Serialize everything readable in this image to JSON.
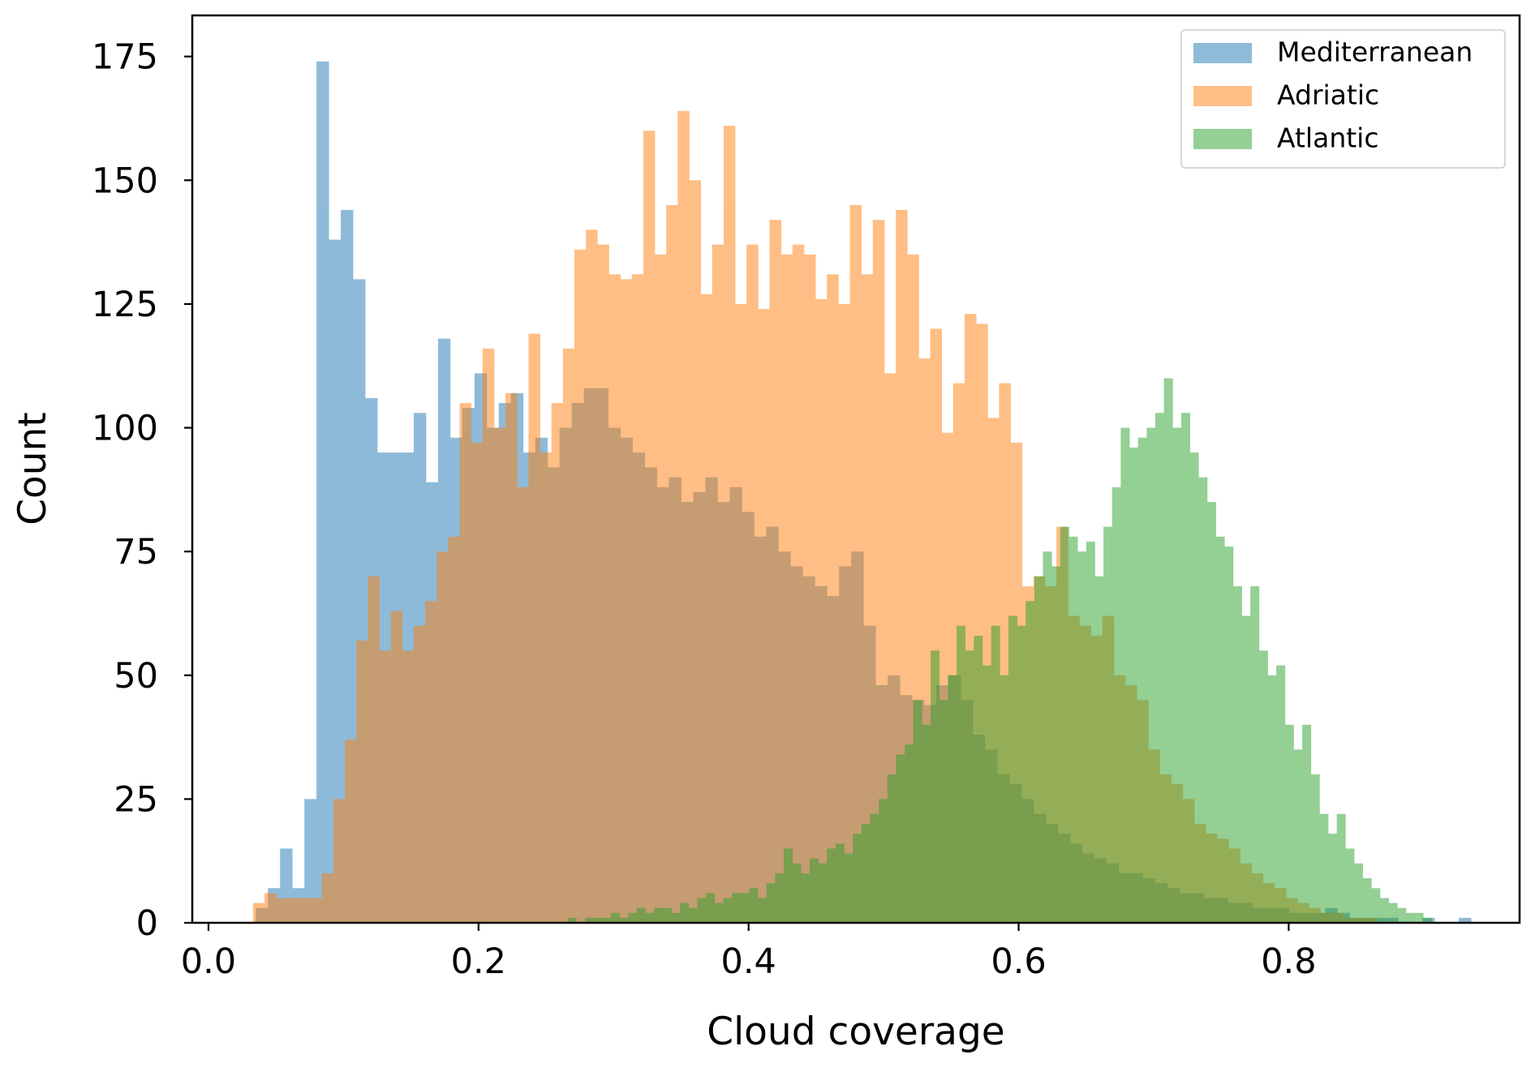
{
  "chart_data": {
    "type": "histogram",
    "xlabel": "Cloud coverage",
    "ylabel": "Count",
    "xlim": [
      -0.012,
      0.971
    ],
    "ylim": [
      0,
      183.3
    ],
    "xticks": [
      {
        "value": 0,
        "label": "0.0"
      },
      0.2,
      0.4,
      0.6,
      0.8
    ],
    "yticks": [
      0,
      25,
      50,
      75,
      100,
      125,
      150,
      175
    ],
    "legend": "upper right",
    "alpha": 0.5,
    "series": [
      {
        "name": "Mediterranean",
        "color": "#1f77b4",
        "bins": [
          0.035,
          0.044,
          0.053,
          0.062,
          0.071,
          0.08,
          0.089,
          0.098,
          0.107,
          0.116,
          0.125,
          0.134,
          0.143,
          0.152,
          0.161,
          0.17,
          0.179,
          0.188,
          0.197,
          0.206,
          0.215,
          0.224,
          0.233,
          0.242,
          0.251,
          0.26,
          0.269,
          0.278,
          0.287,
          0.296,
          0.305,
          0.314,
          0.323,
          0.332,
          0.341,
          0.35,
          0.359,
          0.368,
          0.377,
          0.386,
          0.395,
          0.404,
          0.413,
          0.422,
          0.431,
          0.44,
          0.449,
          0.458,
          0.467,
          0.476,
          0.485,
          0.494,
          0.503,
          0.512,
          0.521,
          0.53,
          0.539,
          0.548,
          0.557,
          0.566,
          0.575,
          0.584,
          0.593,
          0.602,
          0.611,
          0.62,
          0.629,
          0.638,
          0.647,
          0.656,
          0.665,
          0.674,
          0.683,
          0.692,
          0.701,
          0.71,
          0.719,
          0.728,
          0.737,
          0.746,
          0.755,
          0.764,
          0.773,
          0.782,
          0.791,
          0.8,
          0.809,
          0.818,
          0.827,
          0.836,
          0.845,
          0.854,
          0.863,
          0.872,
          0.881,
          0.89,
          0.899,
          0.908,
          0.917,
          0.926,
          0.935
        ],
        "values": [
          3,
          7,
          15,
          7,
          25,
          174,
          138,
          144,
          130,
          106,
          95,
          95,
          95,
          103,
          89,
          118,
          98,
          104,
          111,
          100,
          105,
          107,
          95,
          98,
          92,
          100,
          105,
          108,
          108,
          100,
          98,
          95,
          92,
          88,
          90,
          85,
          87,
          90,
          85,
          88,
          83,
          78,
          80,
          75,
          72,
          70,
          68,
          66,
          72,
          75,
          60,
          48,
          50,
          46,
          45,
          44,
          48,
          50,
          45,
          38,
          35,
          30,
          28,
          25,
          22,
          20,
          18,
          16,
          14,
          13,
          12,
          10,
          10,
          9,
          8,
          7,
          6,
          6,
          5,
          5,
          4,
          4,
          3,
          3,
          3,
          2,
          2,
          2,
          3,
          2,
          1,
          1,
          1,
          1,
          0,
          0,
          1,
          0,
          0,
          1
        ]
      },
      {
        "name": "Adriatic",
        "color": "#ff7f0e",
        "bins": [
          0.033,
          0.0415,
          0.05,
          0.0585,
          0.067,
          0.0755,
          0.084,
          0.0925,
          0.101,
          0.1095,
          0.118,
          0.1265,
          0.135,
          0.1435,
          0.152,
          0.1605,
          0.169,
          0.1775,
          0.186,
          0.1945,
          0.203,
          0.2115,
          0.22,
          0.2285,
          0.237,
          0.2455,
          0.254,
          0.2625,
          0.271,
          0.2795,
          0.288,
          0.2965,
          0.305,
          0.3135,
          0.322,
          0.3305,
          0.339,
          0.3475,
          0.356,
          0.3645,
          0.373,
          0.3815,
          0.39,
          0.3985,
          0.407,
          0.4155,
          0.424,
          0.4325,
          0.441,
          0.4495,
          0.458,
          0.4665,
          0.475,
          0.4835,
          0.492,
          0.5005,
          0.509,
          0.5175,
          0.526,
          0.5345,
          0.543,
          0.5515,
          0.56,
          0.5685,
          0.577,
          0.5855,
          0.594,
          0.6025,
          0.611,
          0.6195,
          0.628,
          0.6365,
          0.645,
          0.6535,
          0.662,
          0.6705,
          0.679,
          0.6875,
          0.696,
          0.7045,
          0.713,
          0.7215,
          0.73,
          0.7385,
          0.747,
          0.7555,
          0.764,
          0.7725,
          0.781,
          0.7895,
          0.798,
          0.8065,
          0.815,
          0.8235,
          0.832,
          0.8405,
          0.849,
          0.8575,
          0.866
        ],
        "values": [
          4,
          6,
          5,
          5,
          5,
          5,
          10,
          25,
          37,
          57,
          70,
          55,
          63,
          55,
          60,
          65,
          75,
          78,
          105,
          97,
          116,
          100,
          107,
          88,
          119,
          95,
          105,
          116,
          136,
          140,
          137,
          131,
          130,
          131,
          160,
          135,
          145,
          164,
          150,
          127,
          137,
          161,
          125,
          137,
          124,
          142,
          135,
          137,
          135,
          126,
          131,
          125,
          145,
          131,
          142,
          111,
          144,
          135,
          114,
          120,
          99,
          109,
          123,
          121,
          102,
          109,
          97,
          68,
          70,
          68,
          80,
          62,
          60,
          58,
          62,
          50,
          48,
          45,
          35,
          30,
          28,
          25,
          20,
          18,
          17,
          15,
          12,
          10,
          8,
          7,
          5,
          4,
          3,
          2,
          2,
          1,
          1,
          1
        ]
      },
      {
        "name": "Atlantic",
        "color": "#2ca02c",
        "bins": [
          0.266,
          0.2724,
          0.2788,
          0.2852,
          0.2916,
          0.298,
          0.3044,
          0.3108,
          0.3172,
          0.3236,
          0.33,
          0.3364,
          0.3428,
          0.3492,
          0.3556,
          0.362,
          0.3684,
          0.3748,
          0.3812,
          0.3876,
          0.394,
          0.4004,
          0.4068,
          0.4132,
          0.4196,
          0.426,
          0.4324,
          0.4388,
          0.4452,
          0.4516,
          0.458,
          0.4644,
          0.4708,
          0.4772,
          0.4836,
          0.49,
          0.4964,
          0.5028,
          0.5092,
          0.5156,
          0.522,
          0.5284,
          0.5348,
          0.5412,
          0.5476,
          0.554,
          0.5604,
          0.5668,
          0.5732,
          0.5796,
          0.586,
          0.5924,
          0.5988,
          0.6052,
          0.6116,
          0.618,
          0.6244,
          0.6308,
          0.6372,
          0.6436,
          0.65,
          0.6564,
          0.6628,
          0.6692,
          0.6756,
          0.682,
          0.6884,
          0.6948,
          0.7012,
          0.7076,
          0.714,
          0.7204,
          0.7268,
          0.7332,
          0.7396,
          0.746,
          0.7524,
          0.7588,
          0.7652,
          0.7716,
          0.778,
          0.7844,
          0.7908,
          0.7972,
          0.8036,
          0.81,
          0.8164,
          0.8228,
          0.8292,
          0.8356,
          0.842,
          0.8484,
          0.8548,
          0.8612,
          0.8676,
          0.874,
          0.8804,
          0.8868,
          0.8932,
          0.8996,
          0.906
        ],
        "values": [
          1,
          0,
          1,
          1,
          1,
          2,
          1,
          2,
          3,
          2,
          3,
          3,
          2,
          4,
          3,
          5,
          6,
          4,
          5,
          6,
          6,
          7,
          5,
          8,
          10,
          15,
          12,
          10,
          13,
          12,
          15,
          16,
          14,
          18,
          20,
          22,
          25,
          30,
          34,
          36,
          45,
          40,
          55,
          45,
          50,
          60,
          55,
          58,
          52,
          60,
          50,
          62,
          60,
          65,
          70,
          75,
          72,
          80,
          78,
          75,
          77,
          70,
          80,
          88,
          100,
          96,
          98,
          100,
          103,
          110,
          100,
          103,
          95,
          90,
          85,
          78,
          76,
          68,
          62,
          68,
          55,
          50,
          52,
          40,
          35,
          40,
          30,
          22,
          18,
          22,
          15,
          12,
          9,
          7,
          5,
          4,
          3,
          2,
          2,
          1
        ]
      }
    ]
  }
}
